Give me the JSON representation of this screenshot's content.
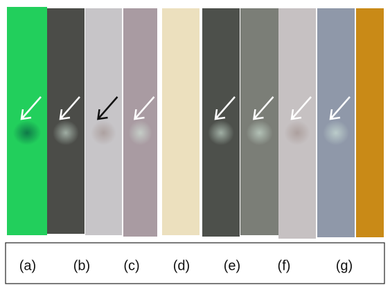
{
  "labels": [
    "(a)",
    "(b)",
    "(c)",
    "(d)",
    "(e)",
    "(f)",
    "(g)"
  ]
}
